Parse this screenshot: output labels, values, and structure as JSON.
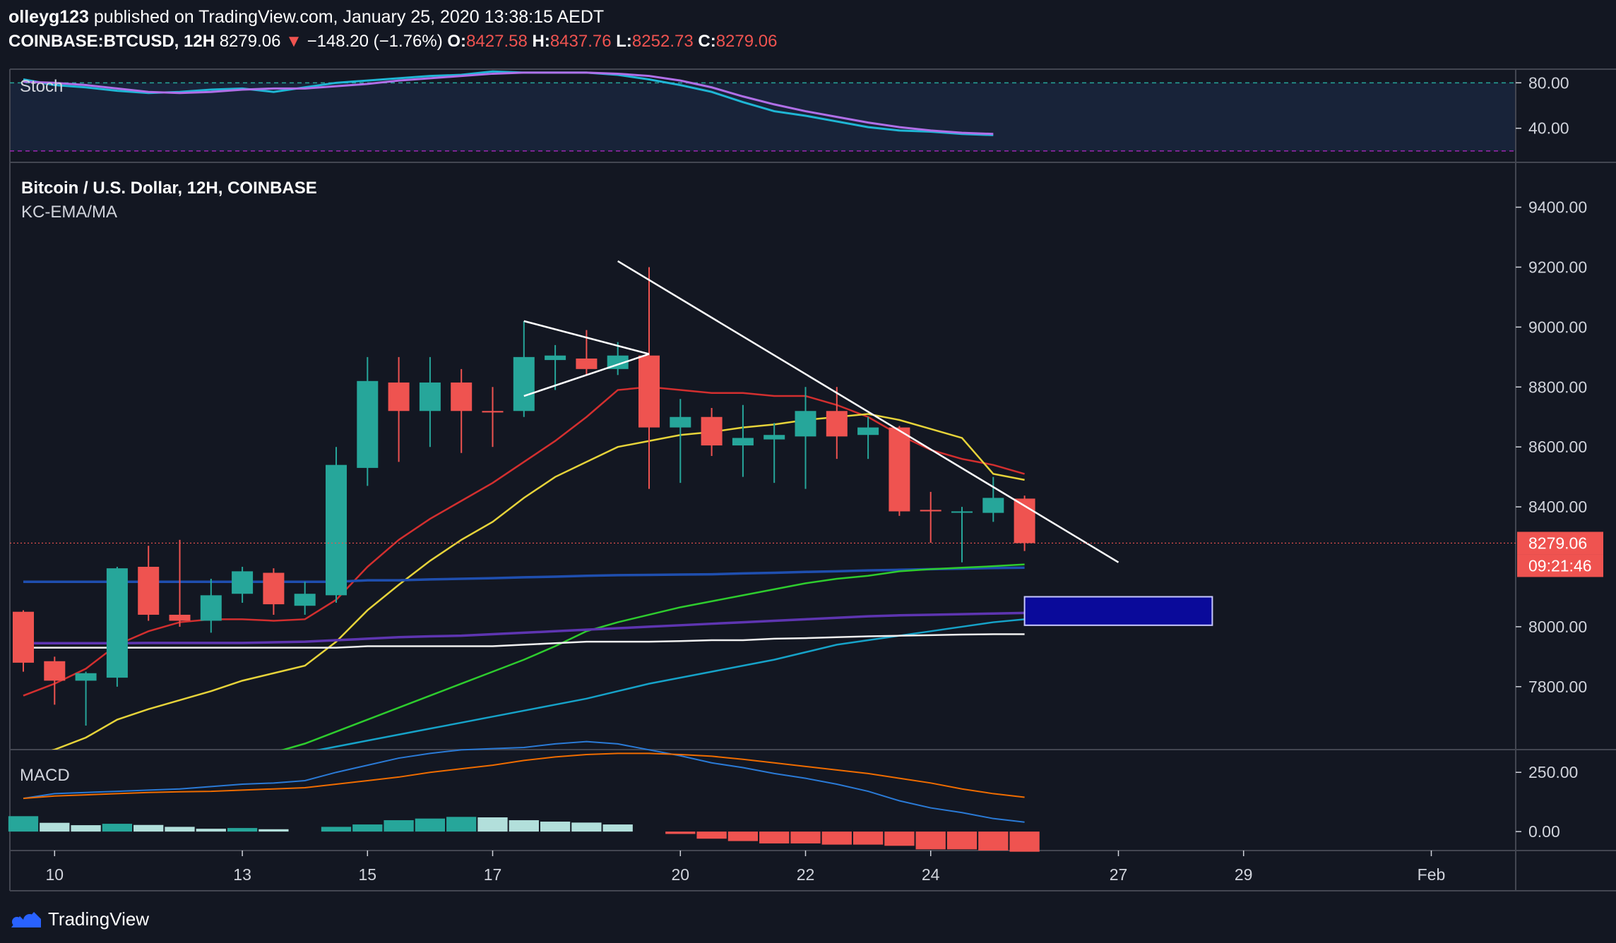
{
  "header": {
    "user": "olleyg123",
    "published_text": "published on TradingView.com, January 25, 2020 13:38:15 AEDT",
    "symbol": "COINBASE:BTCUSD, 12H",
    "last": "8279.06",
    "change": "−148.20 (−1.76%)",
    "o_label": "O:",
    "o": "8427.58",
    "h_label": "H:",
    "h": "8437.76",
    "l_label": "L:",
    "l": "8252.73",
    "c_label": "C:",
    "c": "8279.06"
  },
  "footer": {
    "brand": "TradingView"
  },
  "colors": {
    "bg": "#131722",
    "up": "#26a69a",
    "down": "#ef5350",
    "upDark": "#1b7f76",
    "stochK": "#1fb6d5",
    "stochD": "#b06fe8",
    "ema_red": "#d32f2f",
    "ema_yellow": "#e6d33a",
    "ma_blue": "#1f4fb0",
    "ma_green": "#2ecc2e",
    "ma_purple": "#5e35b1",
    "ma_teal": "#16a2c8",
    "ma_white": "#f0f0f0",
    "macd": "#2a7ad6",
    "signal": "#ef6c00",
    "box": "#0a0a9a"
  },
  "chart_data": [
    {
      "type": "line",
      "indicator": "Stoch",
      "title": "Stoch",
      "ylim": [
        10,
        92
      ],
      "levels": [
        80,
        20
      ],
      "ticks": [
        "80.00",
        "40.00"
      ],
      "tick_values": [
        80,
        40
      ],
      "x": [
        "Jan 9 12:00",
        "Jan 10 00:00",
        "Jan 10 12:00",
        "Jan 11 00:00",
        "Jan 11 12:00",
        "Jan 12 00:00",
        "Jan 12 12:00",
        "Jan 13 00:00",
        "Jan 13 12:00",
        "Jan 14 00:00",
        "Jan 14 12:00",
        "Jan 15 00:00",
        "Jan 15 12:00",
        "Jan 16 00:00",
        "Jan 16 12:00",
        "Jan 17 00:00",
        "Jan 17 12:00",
        "Jan 18 00:00",
        "Jan 18 12:00",
        "Jan 19 00:00",
        "Jan 19 12:00",
        "Jan 20 00:00",
        "Jan 20 12:00",
        "Jan 21 00:00",
        "Jan 21 12:00",
        "Jan 22 00:00",
        "Jan 22 12:00",
        "Jan 23 00:00",
        "Jan 23 12:00",
        "Jan 24 00:00",
        "Jan 24 12:00",
        "Jan 25 00:00"
      ],
      "series": [
        {
          "key": "k",
          "values": [
            83,
            78,
            76,
            73,
            71,
            72,
            74,
            75,
            72,
            76,
            80,
            82,
            84,
            86,
            87,
            90,
            89,
            89,
            89,
            87,
            83,
            78,
            72,
            63,
            55,
            51,
            46,
            41,
            38,
            37,
            35,
            34
          ]
        },
        {
          "key": "d",
          "values": [
            81,
            80,
            78,
            75,
            72,
            71,
            72,
            74,
            75,
            75,
            77,
            79,
            82,
            84,
            86,
            88,
            89,
            89,
            89,
            88,
            86,
            82,
            76,
            68,
            61,
            55,
            50,
            45,
            41,
            38,
            36,
            35
          ]
        }
      ]
    },
    {
      "type": "candlestick",
      "title": "Bitcoin / U.S. Dollar, 12H, COINBASE",
      "indicator": "KC-EMA/MA",
      "ylim": [
        7590,
        9545
      ],
      "ticks": [
        "9400.00",
        "9200.00",
        "9000.00",
        "8800.00",
        "8600.00",
        "8400.00",
        "8000.00",
        "7800.00"
      ],
      "tick_values": [
        9400,
        9200,
        9000,
        8800,
        8600,
        8400,
        8000,
        7800
      ],
      "last_price_label": "8279.06",
      "countdown_label": "09:21:46",
      "x_ticks": [
        "10",
        "13",
        "15",
        "17",
        "20",
        "22",
        "24",
        "27",
        "29",
        "Feb"
      ],
      "x_tick_days": [
        10,
        13,
        15,
        17,
        20,
        22,
        24,
        27,
        29,
        32
      ],
      "candles": [
        {
          "t": "Jan 9 12:00",
          "o": 8050,
          "h": 8055,
          "l": 7850,
          "c": 7880
        },
        {
          "t": "Jan 10 00:00",
          "o": 7885,
          "h": 7900,
          "l": 7740,
          "c": 7820
        },
        {
          "t": "Jan 10 12:00",
          "o": 7820,
          "h": 7850,
          "l": 7670,
          "c": 7845
        },
        {
          "t": "Jan 11 00:00",
          "o": 7830,
          "h": 8200,
          "l": 7800,
          "c": 8195
        },
        {
          "t": "Jan 11 12:00",
          "o": 8200,
          "h": 8270,
          "l": 8020,
          "c": 8040
        },
        {
          "t": "Jan 12 00:00",
          "o": 8040,
          "h": 8290,
          "l": 8000,
          "c": 8020
        },
        {
          "t": "Jan 12 12:00",
          "o": 8020,
          "h": 8160,
          "l": 7980,
          "c": 8105
        },
        {
          "t": "Jan 13 00:00",
          "o": 8110,
          "h": 8200,
          "l": 8080,
          "c": 8185
        },
        {
          "t": "Jan 13 12:00",
          "o": 8180,
          "h": 8195,
          "l": 8040,
          "c": 8075
        },
        {
          "t": "Jan 14 00:00",
          "o": 8070,
          "h": 8150,
          "l": 8040,
          "c": 8110
        },
        {
          "t": "Jan 14 12:00",
          "o": 8105,
          "h": 8600,
          "l": 8080,
          "c": 8540
        },
        {
          "t": "Jan 15 00:00",
          "o": 8530,
          "h": 8900,
          "l": 8470,
          "c": 8820
        },
        {
          "t": "Jan 15 12:00",
          "o": 8815,
          "h": 8900,
          "l": 8550,
          "c": 8720
        },
        {
          "t": "Jan 16 00:00",
          "o": 8720,
          "h": 8900,
          "l": 8600,
          "c": 8815
        },
        {
          "t": "Jan 16 12:00",
          "o": 8815,
          "h": 8860,
          "l": 8580,
          "c": 8720
        },
        {
          "t": "Jan 17 00:00",
          "o": 8720,
          "h": 8800,
          "l": 8600,
          "c": 8715
        },
        {
          "t": "Jan 17 12:00",
          "o": 8720,
          "h": 9020,
          "l": 8700,
          "c": 8900
        },
        {
          "t": "Jan 18 00:00",
          "o": 8890,
          "h": 8940,
          "l": 8790,
          "c": 8905
        },
        {
          "t": "Jan 18 12:00",
          "o": 8895,
          "h": 8990,
          "l": 8840,
          "c": 8860
        },
        {
          "t": "Jan 19 00:00",
          "o": 8860,
          "h": 8950,
          "l": 8840,
          "c": 8905
        },
        {
          "t": "Jan 19 12:00",
          "o": 8905,
          "h": 9200,
          "l": 8460,
          "c": 8665
        },
        {
          "t": "Jan 20 00:00",
          "o": 8665,
          "h": 8760,
          "l": 8480,
          "c": 8700
        },
        {
          "t": "Jan 20 12:00",
          "o": 8700,
          "h": 8730,
          "l": 8570,
          "c": 8605
        },
        {
          "t": "Jan 21 00:00",
          "o": 8605,
          "h": 8740,
          "l": 8500,
          "c": 8630
        },
        {
          "t": "Jan 21 12:00",
          "o": 8625,
          "h": 8680,
          "l": 8480,
          "c": 8640
        },
        {
          "t": "Jan 22 00:00",
          "o": 8635,
          "h": 8800,
          "l": 8460,
          "c": 8720
        },
        {
          "t": "Jan 22 12:00",
          "o": 8720,
          "h": 8800,
          "l": 8560,
          "c": 8635
        },
        {
          "t": "Jan 23 00:00",
          "o": 8640,
          "h": 8700,
          "l": 8560,
          "c": 8665
        },
        {
          "t": "Jan 23 12:00",
          "o": 8665,
          "h": 8670,
          "l": 8370,
          "c": 8385
        },
        {
          "t": "Jan 24 00:00",
          "o": 8390,
          "h": 8450,
          "l": 8280,
          "c": 8385
        },
        {
          "t": "Jan 24 12:00",
          "o": 8385,
          "h": 8400,
          "l": 8215,
          "c": 8385
        },
        {
          "t": "Jan 25 00:00",
          "o": 8380,
          "h": 8500,
          "l": 8350,
          "c": 8430
        },
        {
          "t": "Jan 25 12:00",
          "o": 8427.58,
          "h": 8437.76,
          "l": 8252.73,
          "c": 8279.06
        }
      ],
      "overlays": [
        {
          "key": "ema_red",
          "values": [
            7770,
            7810,
            7860,
            7940,
            7985,
            8015,
            8025,
            8025,
            8020,
            8025,
            8090,
            8200,
            8290,
            8360,
            8420,
            8480,
            8550,
            8620,
            8700,
            8790,
            8800,
            8790,
            8780,
            8780,
            8770,
            8770,
            8740,
            8700,
            8640,
            8590,
            8560,
            8540,
            8510
          ]
        },
        {
          "key": "ema_yellow",
          "values": [
            7560,
            7590,
            7630,
            7690,
            7725,
            7755,
            7785,
            7820,
            7845,
            7870,
            7950,
            8055,
            8140,
            8220,
            8290,
            8350,
            8430,
            8500,
            8550,
            8600,
            8620,
            8640,
            8650,
            8665,
            8675,
            8690,
            8700,
            8710,
            8690,
            8660,
            8630,
            8510,
            8490
          ]
        },
        {
          "key": "ma_blue",
          "values": [
            8150,
            8150,
            8150,
            8150,
            8150,
            8150,
            8150,
            8150,
            8150,
            8150,
            8150,
            8155,
            8155,
            8158,
            8160,
            8162,
            8165,
            8167,
            8170,
            8172,
            8173,
            8174,
            8175,
            8178,
            8180,
            8183,
            8185,
            8188,
            8190,
            8192,
            8194,
            8196,
            8197
          ]
        },
        {
          "key": "ma_green",
          "values": [
            7400,
            7410,
            7430,
            7450,
            7470,
            7500,
            7520,
            7550,
            7580,
            7610,
            7650,
            7690,
            7730,
            7770,
            7810,
            7850,
            7890,
            7935,
            7985,
            8015,
            8040,
            8065,
            8085,
            8105,
            8125,
            8145,
            8160,
            8170,
            8185,
            8192,
            8197,
            8202,
            8208
          ]
        },
        {
          "key": "ma_purple",
          "values": [
            7945,
            7945,
            7945,
            7945,
            7946,
            7946,
            7946,
            7946,
            7948,
            7950,
            7955,
            7960,
            7965,
            7968,
            7970,
            7975,
            7980,
            7985,
            7990,
            7995,
            8000,
            8005,
            8010,
            8015,
            8020,
            8025,
            8030,
            8035,
            8038,
            8040,
            8042,
            8044,
            8046
          ]
        },
        {
          "key": "ma_teal",
          "values": [
            7400,
            7410,
            7420,
            7440,
            7460,
            7480,
            7500,
            7520,
            7550,
            7580,
            7600,
            7620,
            7640,
            7660,
            7680,
            7700,
            7720,
            7740,
            7760,
            7785,
            7810,
            7830,
            7850,
            7870,
            7890,
            7915,
            7940,
            7955,
            7970,
            7985,
            8000,
            8015,
            8025
          ]
        },
        {
          "key": "ma_white",
          "values": [
            7930,
            7930,
            7930,
            7930,
            7930,
            7930,
            7930,
            7930,
            7930,
            7930,
            7930,
            7935,
            7935,
            7935,
            7935,
            7935,
            7940,
            7945,
            7950,
            7950,
            7950,
            7952,
            7955,
            7955,
            7960,
            7962,
            7965,
            7968,
            7970,
            7972,
            7974,
            7975,
            7975
          ]
        }
      ],
      "drawings": [
        {
          "kind": "triangle_upper",
          "from": [
            "Jan 17 12:00",
            9020
          ],
          "to": [
            "Jan 19 12:00",
            8910
          ]
        },
        {
          "kind": "triangle_lower",
          "from": [
            "Jan 17 12:00",
            8770
          ],
          "to": [
            "Jan 19 12:00",
            8910
          ]
        },
        {
          "kind": "trendline",
          "from": [
            "Jan 19 00:00",
            9220
          ],
          "to": [
            "Jan 27 00:00",
            8215
          ]
        },
        {
          "kind": "box",
          "from": [
            "Jan 25 12:00",
            8100
          ],
          "to": [
            "Jan 28 12:00",
            8005
          ]
        }
      ]
    },
    {
      "type": "bar",
      "indicator": "MACD",
      "title": "MACD",
      "ylim": [
        -80,
        340
      ],
      "ticks": [
        "250.00",
        "0.00"
      ],
      "tick_values": [
        250,
        0
      ],
      "histogram": [
        65,
        37,
        27,
        33,
        28,
        20,
        12,
        15,
        10,
        null,
        20,
        30,
        48,
        55,
        62,
        60,
        48,
        42,
        38,
        30,
        null,
        -10,
        -30,
        -40,
        -50,
        -50,
        -55,
        -55,
        -60,
        -75,
        -75,
        -80,
        -85
      ],
      "macd": [
        140,
        160,
        165,
        170,
        175,
        180,
        190,
        200,
        205,
        215,
        250,
        280,
        310,
        330,
        345,
        350,
        355,
        370,
        380,
        370,
        345,
        320,
        290,
        270,
        245,
        225,
        200,
        170,
        130,
        100,
        80,
        55,
        40
      ],
      "signal": [
        140,
        150,
        155,
        160,
        165,
        168,
        170,
        175,
        180,
        185,
        200,
        215,
        230,
        250,
        265,
        280,
        300,
        315,
        325,
        330,
        330,
        325,
        318,
        305,
        290,
        275,
        260,
        245,
        225,
        205,
        180,
        160,
        145
      ]
    }
  ]
}
